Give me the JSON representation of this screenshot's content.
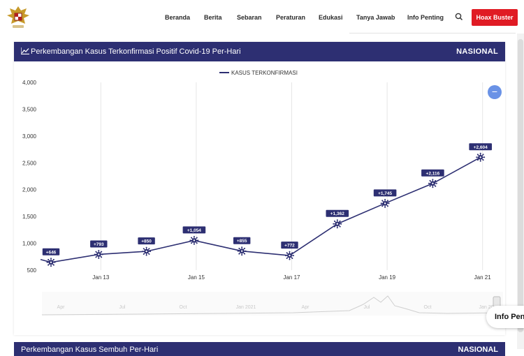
{
  "nav": {
    "items": [
      "Beranda",
      "Berita",
      "Sebaran",
      "Peraturan",
      "Edukasi",
      "Tanya Jawab",
      "Info Penting"
    ],
    "hoax_button": "Hoax Buster"
  },
  "card": {
    "title": "Perkembangan Kasus Terkonfirmasi Positif Covid-19 Per-Hari",
    "region": "NASIONAL"
  },
  "next_card": {
    "title": "Perkembangan Kasus Sembuh Per-Hari",
    "region": "NASIONAL"
  },
  "info_button": "Info Penting",
  "reset_button": "−",
  "navigator_labels": [
    "Apr",
    "Jul",
    "Oct",
    "Jan 2021",
    "Apr",
    "Jul",
    "Oct",
    "Jan 20"
  ],
  "colors": {
    "header": "#2d2f72",
    "accent": "#e01b24",
    "reset": "#6a92e6"
  },
  "chart_data": {
    "type": "line",
    "legend_position": "top-center",
    "grid": true,
    "ylim": [
      500,
      4000
    ],
    "y_ticks": [
      "4,000",
      "3,500",
      "3,000",
      "2,500",
      "2,000",
      "1,500",
      "1,000",
      "500"
    ],
    "x_ticks": [
      "Jan 13",
      "Jan 15",
      "Jan 17",
      "Jan 19",
      "Jan 21"
    ],
    "series": [
      {
        "name": "KASUS TERKONFIRMASI",
        "x": [
          "Jan 12",
          "Jan 13",
          "Jan 14",
          "Jan 15",
          "Jan 16",
          "Jan 17",
          "Jan 18",
          "Jan 19",
          "Jan 20",
          "Jan 21"
        ],
        "values": [
          646,
          793,
          850,
          1054,
          855,
          772,
          1362,
          1745,
          2116,
          2604
        ],
        "data_labels": [
          "+646",
          "+793",
          "+850",
          "+1,054",
          "+855",
          "+772",
          "+1,362",
          "+1,745",
          "+2,116",
          "+2,604"
        ]
      }
    ]
  }
}
